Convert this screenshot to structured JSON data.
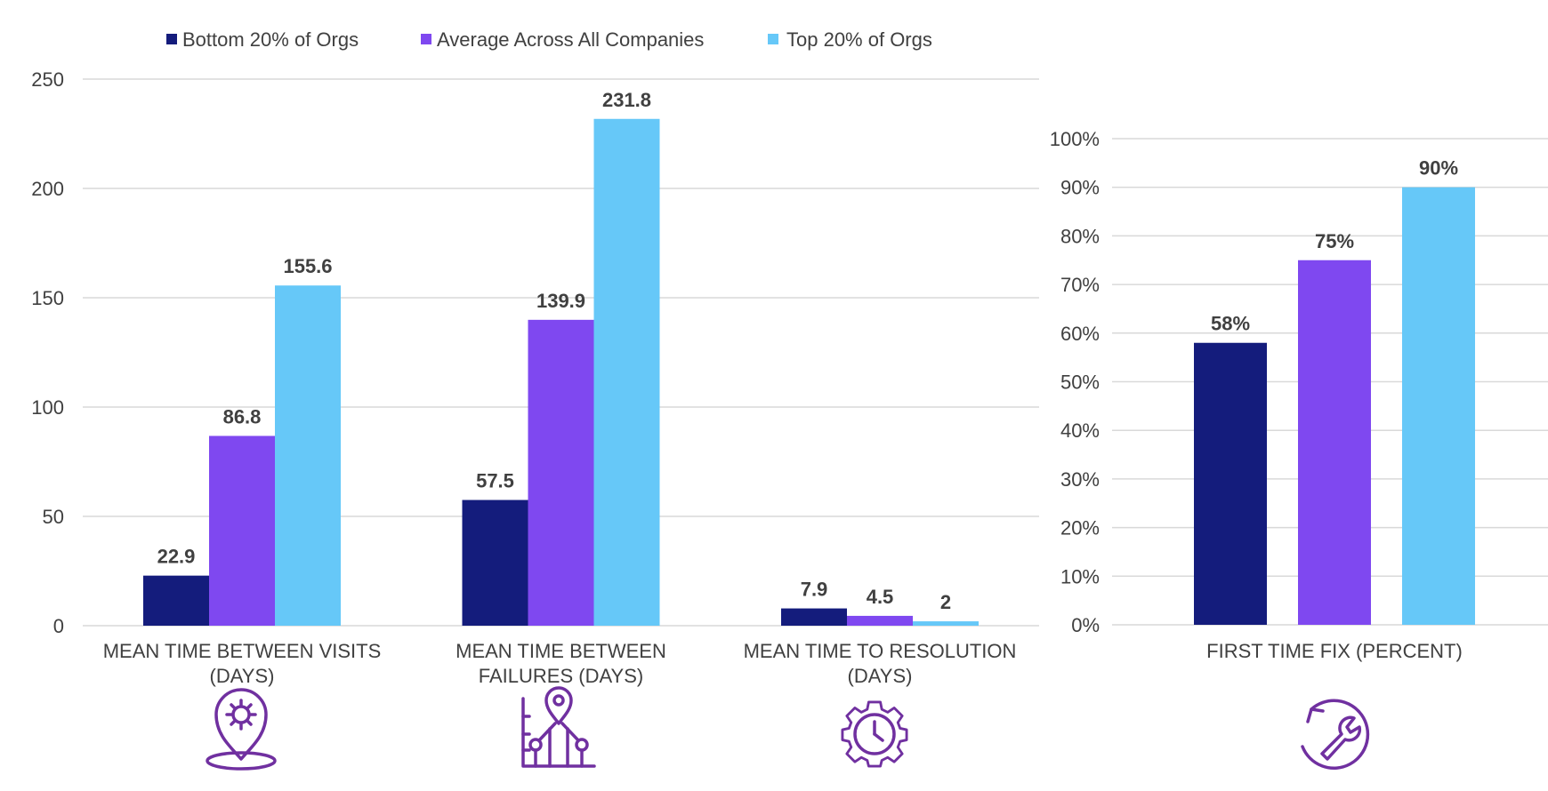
{
  "colors": {
    "bottom": "#141c7c",
    "average": "#7f48f0",
    "top": "#66c8f8",
    "icon": "#7030a0"
  },
  "legend": [
    {
      "label": "Bottom 20% of Orgs",
      "color_key": "bottom"
    },
    {
      "label": "Average Across All Companies",
      "color_key": "average"
    },
    {
      "label": "Top  20% of Orgs",
      "color_key": "top"
    }
  ],
  "icons": [
    {
      "name": "location-gear-icon"
    },
    {
      "name": "network-gear-icon"
    },
    {
      "name": "gear-clock-icon"
    },
    {
      "name": "wrench-refresh-icon"
    }
  ],
  "chart_data": [
    {
      "type": "bar",
      "categories": [
        [
          "MEAN TIME BETWEEN VISITS",
          "(DAYS)"
        ],
        [
          "MEAN TIME BETWEEN",
          "FAILURES (DAYS)"
        ],
        [
          "MEAN TIME TO RESOLUTION",
          "(DAYS)"
        ]
      ],
      "series": [
        {
          "name": "Bottom 20% of Orgs",
          "values": [
            22.9,
            57.5,
            7.9
          ],
          "labels": [
            "22.9",
            "57.5",
            "7.9"
          ]
        },
        {
          "name": "Average Across All Companies",
          "values": [
            86.8,
            139.9,
            4.5
          ],
          "labels": [
            "86.8",
            "139.9",
            "4.5"
          ]
        },
        {
          "name": "Top  20% of Orgs",
          "values": [
            155.6,
            231.8,
            2
          ],
          "labels": [
            "155.6",
            "231.8",
            "2"
          ]
        }
      ],
      "ylim": [
        0,
        250
      ],
      "yticks": [
        "0",
        "50",
        "100",
        "150",
        "200",
        "250"
      ],
      "grid": true,
      "legend_position": "top"
    },
    {
      "type": "bar",
      "categories": [
        [
          "FIRST TIME FIX (PERCENT)"
        ]
      ],
      "series": [
        {
          "name": "Bottom 20% of Orgs",
          "values": [
            58
          ],
          "labels": [
            "58%"
          ]
        },
        {
          "name": "Average Across All Companies",
          "values": [
            75
          ],
          "labels": [
            "75%"
          ]
        },
        {
          "name": "Top  20% of Orgs",
          "values": [
            90
          ],
          "labels": [
            "90%"
          ]
        }
      ],
      "ylim": [
        0,
        100
      ],
      "yticks": [
        "0%",
        "10%",
        "20%",
        "30%",
        "40%",
        "50%",
        "60%",
        "70%",
        "80%",
        "90%",
        "100%"
      ],
      "grid": true
    }
  ]
}
